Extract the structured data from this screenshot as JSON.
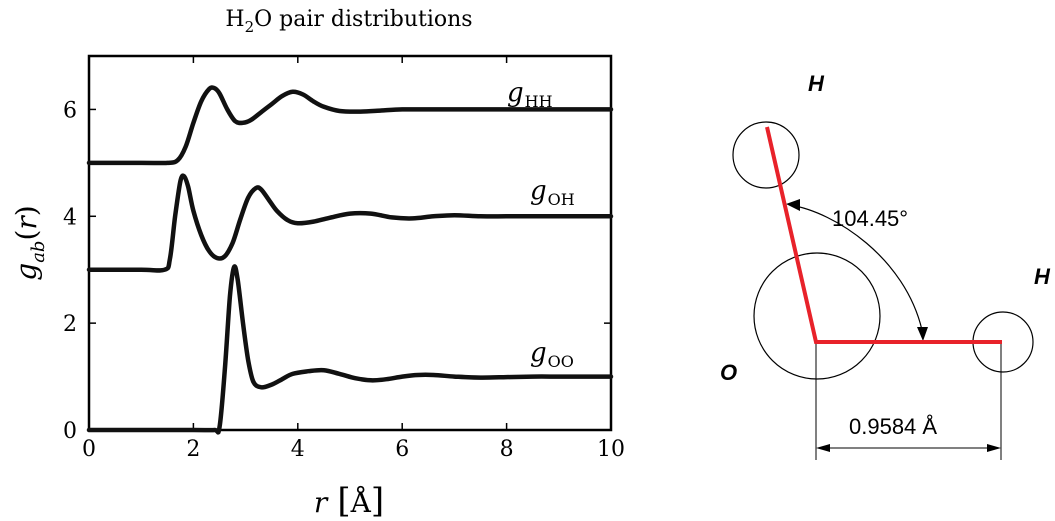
{
  "chart_data": {
    "type": "line",
    "title": "H₂O pair distributions",
    "xlabel": "r [Å]",
    "ylabel": "g_ab(r)",
    "xlim": [
      0,
      10
    ],
    "ylim": [
      0,
      7
    ],
    "xticks": [
      0,
      2,
      4,
      6,
      8,
      10
    ],
    "yticks": [
      0,
      2,
      4,
      6
    ],
    "grid": false,
    "series": [
      {
        "name": "g_HH",
        "x": [
          0,
          1.0,
          1.5,
          1.7,
          1.85,
          2.0,
          2.15,
          2.3,
          2.4,
          2.5,
          2.65,
          2.8,
          2.95,
          3.1,
          3.3,
          3.5,
          3.7,
          3.9,
          4.1,
          4.3,
          4.5,
          4.8,
          5.2,
          5.6,
          6.0,
          6.5,
          7.0,
          7.5,
          8.0,
          8.5,
          9.0,
          9.5,
          10.0
        ],
        "y": [
          5.0,
          5.0,
          5.0,
          5.05,
          5.3,
          5.75,
          6.15,
          6.38,
          6.4,
          6.3,
          6.0,
          5.78,
          5.75,
          5.8,
          5.95,
          6.1,
          6.25,
          6.33,
          6.28,
          6.15,
          6.05,
          5.97,
          5.96,
          5.98,
          6.0,
          6.0,
          6.0,
          6.0,
          6.0,
          6.0,
          6.0,
          6.0,
          6.0
        ]
      },
      {
        "name": "g_OH",
        "x": [
          0,
          1.0,
          1.45,
          1.55,
          1.65,
          1.75,
          1.82,
          1.9,
          2.0,
          2.15,
          2.3,
          2.45,
          2.6,
          2.75,
          2.9,
          3.05,
          3.2,
          3.3,
          3.45,
          3.6,
          3.8,
          4.0,
          4.3,
          4.6,
          5.0,
          5.4,
          5.8,
          6.2,
          6.6,
          7.0,
          7.5,
          8.0,
          8.5,
          9.0,
          9.5,
          10.0
        ],
        "y": [
          3.0,
          3.0,
          3.0,
          3.2,
          4.0,
          4.65,
          4.75,
          4.55,
          4.1,
          3.65,
          3.35,
          3.22,
          3.25,
          3.5,
          3.95,
          4.35,
          4.53,
          4.5,
          4.3,
          4.1,
          3.93,
          3.87,
          3.9,
          3.97,
          4.05,
          4.05,
          3.98,
          3.96,
          4.0,
          4.02,
          4.0,
          4.0,
          4.0,
          4.0,
          4.0,
          4.0
        ]
      },
      {
        "name": "g_OO",
        "x": [
          0,
          1.0,
          2.0,
          2.4,
          2.5,
          2.6,
          2.7,
          2.78,
          2.85,
          2.95,
          3.05,
          3.15,
          3.3,
          3.5,
          3.7,
          3.9,
          4.2,
          4.5,
          4.8,
          5.1,
          5.4,
          5.7,
          6.0,
          6.3,
          6.6,
          7.0,
          7.5,
          8.0,
          8.5,
          9.0,
          9.5,
          10.0
        ],
        "y": [
          0.0,
          0.0,
          0.0,
          0.0,
          0.05,
          1.1,
          2.5,
          3.05,
          2.8,
          2.0,
          1.3,
          0.9,
          0.8,
          0.85,
          0.95,
          1.05,
          1.1,
          1.12,
          1.05,
          0.97,
          0.93,
          0.95,
          1.0,
          1.03,
          1.03,
          1.0,
          0.98,
          0.99,
          1.0,
          1.0,
          1.0,
          1.0
        ]
      }
    ]
  },
  "diagram": {
    "atoms": [
      {
        "label": "H",
        "cx": 0,
        "cy": 0
      },
      {
        "label": "H",
        "cx": 0,
        "cy": 0
      },
      {
        "label": "O",
        "cx": 0,
        "cy": 0
      }
    ],
    "angle_label": "104.45°",
    "bond_length_label": "0.9584 Å",
    "bond_color": "#e8222a"
  },
  "colors": {
    "curve": "#111111",
    "axis": "#000000",
    "bond": "#e8222a"
  }
}
